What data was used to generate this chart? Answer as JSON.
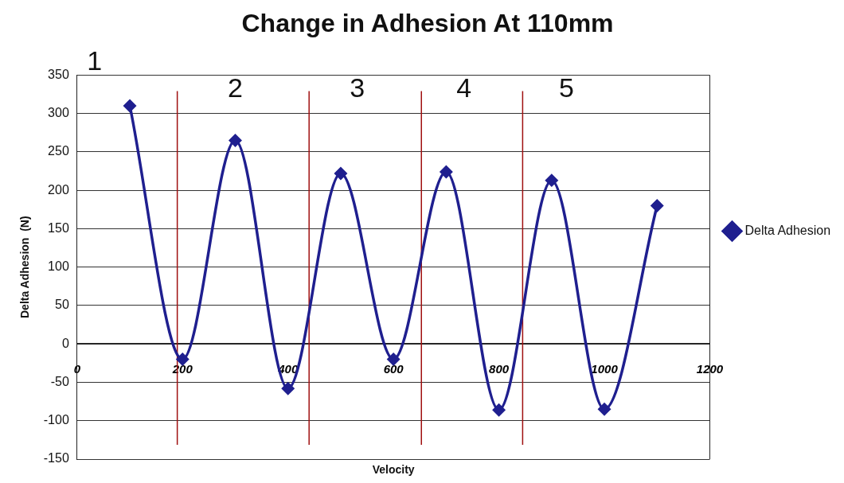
{
  "chart_data": {
    "type": "line",
    "title": "Change in Adhesion At 110mm",
    "xlabel": "Velocity",
    "ylabel": "Delta Adhesion  (N)",
    "x": [
      100,
      200,
      300,
      400,
      500,
      600,
      700,
      800,
      900,
      1000,
      1100
    ],
    "series": [
      {
        "name": "Delta Adhesion",
        "color": "#1f1f8f",
        "values": [
          310,
          -20,
          265,
          -58,
          222,
          -20,
          224,
          -86,
          213,
          -85,
          180
        ]
      }
    ],
    "xlim": [
      0,
      1200
    ],
    "xticks": [
      0,
      200,
      400,
      600,
      800,
      1000,
      1200
    ],
    "ylim": [
      -150,
      350
    ],
    "yticks": [
      -150,
      -100,
      -50,
      0,
      50,
      100,
      150,
      200,
      250,
      300,
      350
    ],
    "ref_lines": [
      {
        "axis": "x",
        "value": 190,
        "color": "#a01010"
      },
      {
        "axis": "x",
        "value": 440,
        "color": "#a01010"
      },
      {
        "axis": "x",
        "value": 653,
        "color": "#a01010"
      },
      {
        "axis": "x",
        "value": 845,
        "color": "#a01010"
      }
    ],
    "annotations": [
      "1",
      "2",
      "3",
      "4",
      "5"
    ],
    "grid": "y",
    "legend": "right",
    "marker": "diamond",
    "line_style": "solid"
  }
}
